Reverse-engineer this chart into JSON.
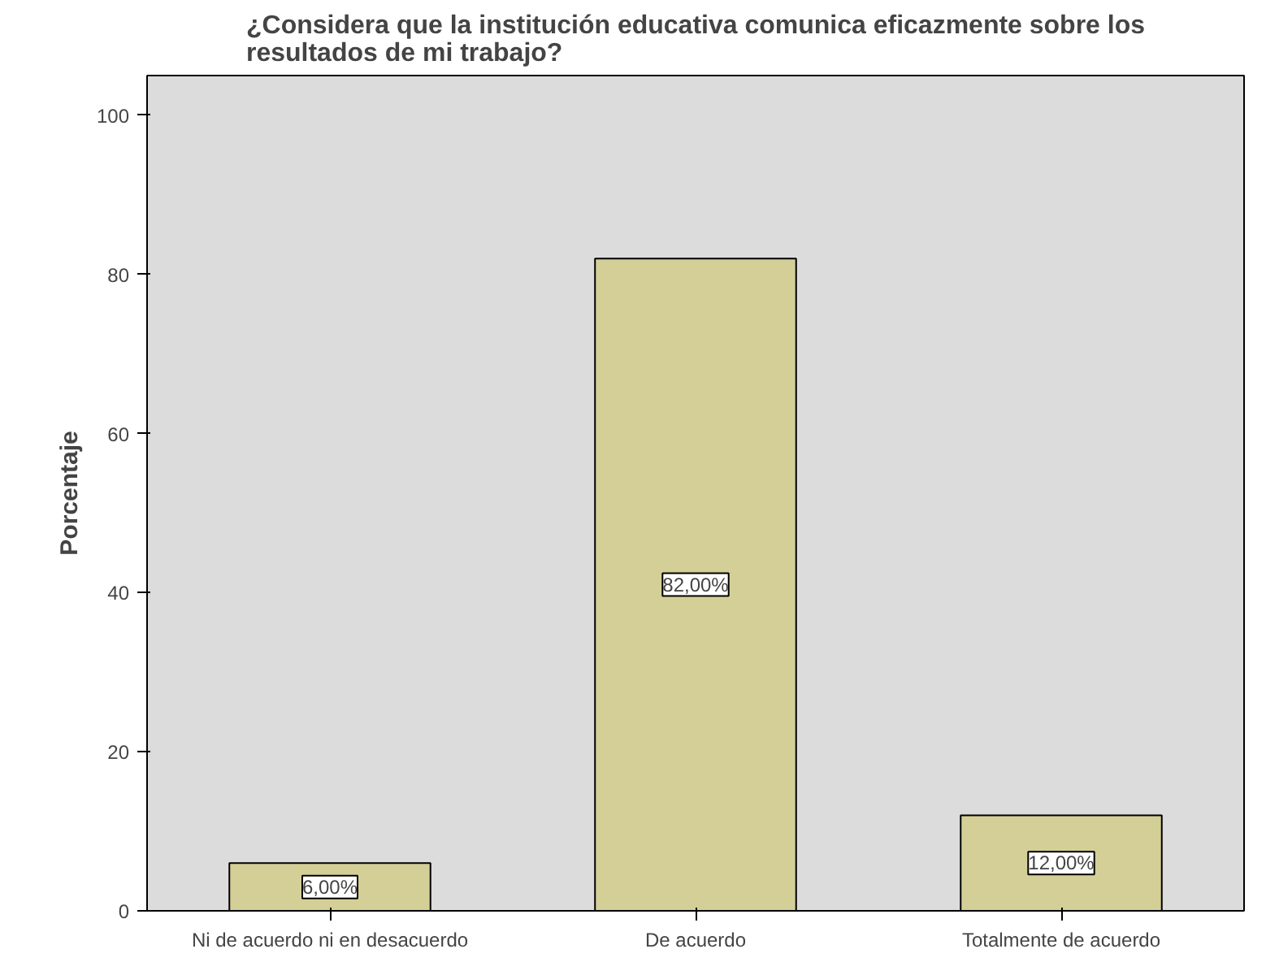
{
  "chart_data": {
    "type": "bar",
    "title": "¿Considera que la institución educativa comunica eficazmente sobre los resultados de mi trabajo?",
    "ylabel": "Porcentaje",
    "categories": [
      "Ni de acuerdo ni en desacuerdo",
      "De acuerdo",
      "Totalmente de acuerdo"
    ],
    "values": [
      6,
      82,
      12
    ],
    "color": "#d4cf97",
    "value_labels": [
      "6,00%",
      "82,00%",
      "12,00%"
    ],
    "ylim": [
      0,
      105
    ],
    "yticks": [
      0,
      20,
      40,
      60,
      80,
      100
    ],
    "grid": false
  }
}
